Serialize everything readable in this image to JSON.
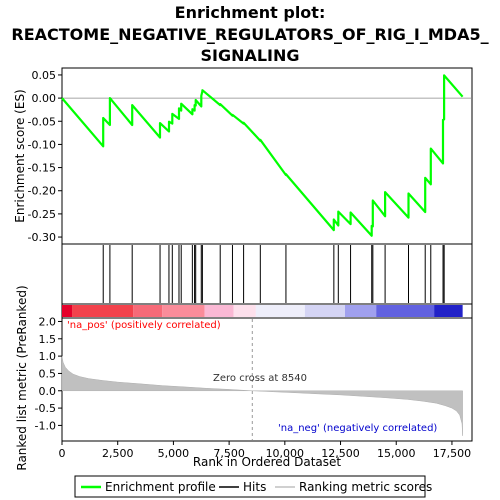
{
  "chart_data": {
    "type": "line",
    "title_lines": [
      "Enrichment plot:",
      "REACTOME_NEGATIVE_REGULATORS_OF_RIG_I_MDA5_",
      "SIGNALING"
    ],
    "es_panel": {
      "ylabel": "Enrichment score (ES)",
      "ylim": [
        -0.315,
        0.065
      ],
      "yticks": [
        0.05,
        0.0,
        -0.05,
        -0.1,
        -0.15,
        -0.2,
        -0.25,
        -0.3
      ],
      "ytick_labels": [
        "0.05",
        "0.00",
        "-0.05",
        "-0.10",
        "-0.15",
        "-0.20",
        "-0.25",
        "-0.30"
      ],
      "series_name": "Enrichment profile",
      "color": "#00ff00",
      "x": [
        0,
        1850,
        1850,
        2150,
        2150,
        3150,
        3150,
        4400,
        4400,
        4800,
        4800,
        4950,
        4950,
        5250,
        5250,
        5350,
        5350,
        5850,
        5850,
        5950,
        5950,
        6000,
        6000,
        6250,
        6250,
        6300,
        6300,
        7100,
        7100,
        7650,
        7650,
        8150,
        8150,
        8900,
        8900,
        10050,
        10050,
        12200,
        12200,
        12400,
        12400,
        12950,
        12950,
        13900,
        13900,
        13950,
        13950,
        14500,
        14500,
        15550,
        15550,
        16300,
        16300,
        16550,
        16550,
        17100,
        17100,
        17150,
        17150,
        17980
      ],
      "y": [
        0.0,
        -0.104,
        -0.043,
        -0.058,
        0.0,
        -0.058,
        -0.015,
        -0.085,
        -0.054,
        -0.072,
        -0.051,
        -0.055,
        -0.034,
        -0.045,
        -0.022,
        -0.027,
        -0.012,
        -0.035,
        -0.024,
        -0.027,
        -0.015,
        -0.016,
        -0.004,
        -0.018,
        0.005,
        0.015,
        0.017,
        -0.015,
        -0.013,
        -0.038,
        -0.036,
        -0.055,
        -0.053,
        -0.092,
        -0.09,
        -0.166,
        -0.164,
        -0.285,
        -0.262,
        -0.275,
        -0.245,
        -0.272,
        -0.247,
        -0.297,
        -0.276,
        -0.277,
        -0.221,
        -0.255,
        -0.203,
        -0.258,
        -0.206,
        -0.246,
        -0.172,
        -0.186,
        -0.109,
        -0.141,
        -0.047,
        -0.046,
        0.049,
        0.003
      ]
    },
    "hits": {
      "name": "Hits",
      "positions": [
        1850,
        2150,
        3150,
        4400,
        4800,
        4950,
        5250,
        5350,
        5850,
        5950,
        6000,
        6250,
        6300,
        7100,
        7650,
        8150,
        8900,
        10050,
        12200,
        12400,
        12950,
        13900,
        13950,
        14500,
        15550,
        16300,
        16550,
        17100,
        17150
      ]
    },
    "ranked_panel": {
      "ylabel": "Ranked list metric (PreRanked)",
      "xlabel": "Rank in Ordered Dataset",
      "series_name": "Ranking metric scores",
      "color": "#c0c0c0",
      "ylim": [
        -1.45,
        2.1
      ],
      "yticks": [
        2.0,
        1.5,
        1.0,
        0.5,
        0.0,
        -0.5,
        -1.0
      ],
      "ytick_labels": [
        "2.0",
        "1.5",
        "1.0",
        "0.5",
        "0.0",
        "-0.5",
        "-1.0"
      ],
      "x": [
        0,
        50,
        150,
        300,
        500,
        800,
        1200,
        1800,
        2500,
        3500,
        4500,
        5500,
        6500,
        7500,
        8540,
        9500,
        10500,
        11500,
        12500,
        13500,
        14500,
        15500,
        16200,
        16800,
        17200,
        17500,
        17700,
        17850,
        17950,
        17980
      ],
      "values": [
        1.0,
        0.82,
        0.68,
        0.57,
        0.48,
        0.41,
        0.35,
        0.3,
        0.25,
        0.2,
        0.15,
        0.11,
        0.07,
        0.04,
        0.0,
        -0.03,
        -0.06,
        -0.09,
        -0.12,
        -0.16,
        -0.2,
        -0.25,
        -0.3,
        -0.36,
        -0.43,
        -0.5,
        -0.58,
        -0.7,
        -0.95,
        -1.3
      ],
      "label_pos": "'na_pos' (positively correlated)",
      "label_neg": "'na_neg' (negatively correlated)",
      "zero_cross_label": "Zero cross at 8540",
      "zero_cross": 8540
    },
    "xaxis": {
      "xlim": [
        0,
        18400
      ],
      "xticks": [
        0,
        2500,
        5000,
        7500,
        10000,
        12500,
        15000,
        17500
      ],
      "xtick_labels": [
        "0",
        "2,500",
        "5,000",
        "7,500",
        "10,000",
        "12,500",
        "15,000",
        "17,500"
      ]
    },
    "color_bar": {
      "n_total": 17980,
      "segments": [
        {
          "start": 0,
          "end": 450,
          "color": "#e5002a"
        },
        {
          "start": 450,
          "end": 3200,
          "color": "#f2424c"
        },
        {
          "start": 3200,
          "end": 4500,
          "color": "#f66a78"
        },
        {
          "start": 4500,
          "end": 6400,
          "color": "#fa8c9a"
        },
        {
          "start": 6400,
          "end": 7700,
          "color": "#fab8d4"
        },
        {
          "start": 7700,
          "end": 8700,
          "color": "#fde0ec"
        },
        {
          "start": 8700,
          "end": 10900,
          "color": "#eeeefa"
        },
        {
          "start": 10900,
          "end": 12700,
          "color": "#d4d4f4"
        },
        {
          "start": 12700,
          "end": 14100,
          "color": "#a0a0ee"
        },
        {
          "start": 14100,
          "end": 16700,
          "color": "#6262e0"
        },
        {
          "start": 16700,
          "end": 17980,
          "color": "#2222c8"
        }
      ]
    },
    "legend": [
      {
        "label": "Enrichment profile",
        "color": "#00ff00"
      },
      {
        "label": "Hits",
        "color": "#000000"
      },
      {
        "label": "Ranking metric scores",
        "color": "#c0c0c0"
      }
    ]
  }
}
